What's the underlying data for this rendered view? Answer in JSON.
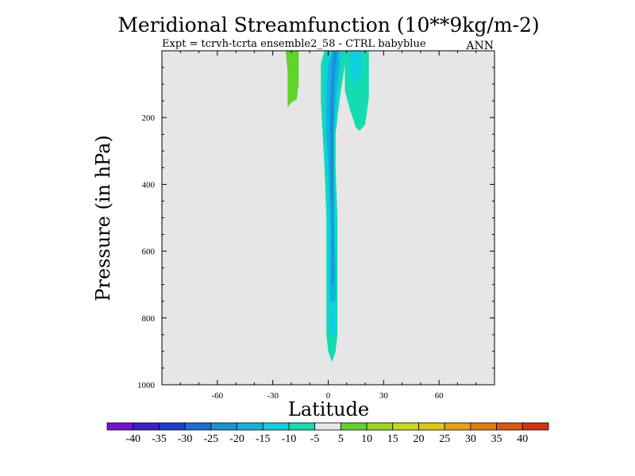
{
  "chart_data": {
    "type": "contour",
    "title": "Meridional Streamfunction (10**9kg/m-2)",
    "subtitle": "Expt = tcrvh-tcrta  ensemble2_58 - CTRL babyblue",
    "season": "ANN",
    "xlabel": "Latitude",
    "ylabel": "Pressure (in hPa)",
    "xlim": [
      -90,
      90
    ],
    "ylim": [
      1000,
      0
    ],
    "x_major_ticks": [
      -60,
      -30,
      0,
      30,
      60
    ],
    "x_tick_labels": [
      "-60",
      "-30",
      "0",
      "30",
      "60"
    ],
    "y_major_ticks": [
      200,
      400,
      600,
      800,
      1000
    ],
    "y_tick_labels": [
      "200",
      "400",
      "600",
      "800",
      "1000"
    ],
    "background_color": "#e6e6e6",
    "colorbar": {
      "levels": [
        -40,
        -35,
        -30,
        -25,
        -20,
        -15,
        -10,
        -5,
        5,
        10,
        15,
        20,
        25,
        30,
        35,
        40
      ],
      "labels": [
        "-40",
        "-35",
        "-30",
        "-25",
        "-20",
        "-15",
        "-10",
        "-5",
        "5",
        "10",
        "15",
        "20",
        "25",
        "30",
        "35",
        "40"
      ],
      "colors": [
        "#7a10d8",
        "#3a1fd0",
        "#1b3fd8",
        "#1a6ed8",
        "#1592d8",
        "#13b2de",
        "#10cfe0",
        "#12dcb0",
        "#e6e6e6",
        "#5fd42a",
        "#9ad81a",
        "#c8d81a",
        "#e2c412",
        "#e3a20e",
        "#e27c0c",
        "#e0560c",
        "#d8300c"
      ]
    },
    "regions": [
      {
        "name": "central-cell-outer",
        "level_band": "-10 to -5",
        "color": "#12dcb0",
        "polygon": [
          [
            -2,
            0
          ],
          [
            -4,
            40
          ],
          [
            -4,
            150
          ],
          [
            -3,
            250
          ],
          [
            -2,
            350
          ],
          [
            -1,
            500
          ],
          [
            -1,
            650
          ],
          [
            -1,
            750
          ],
          [
            -1,
            850
          ],
          [
            0,
            900
          ],
          [
            2,
            932
          ],
          [
            4,
            900
          ],
          [
            5,
            850
          ],
          [
            5,
            750
          ],
          [
            5,
            650
          ],
          [
            5,
            500
          ],
          [
            4,
            350
          ],
          [
            4,
            250
          ],
          [
            6,
            150
          ],
          [
            9,
            40
          ],
          [
            10,
            0
          ]
        ]
      },
      {
        "name": "central-cell-mid",
        "level_band": "-15 to -10",
        "color": "#10cfe0",
        "polygon": [
          [
            1,
            0
          ],
          [
            -2,
            40
          ],
          [
            -2,
            150
          ],
          [
            -2,
            250
          ],
          [
            -1,
            350
          ],
          [
            0,
            500
          ],
          [
            0,
            650
          ],
          [
            0,
            750
          ],
          [
            1,
            850
          ],
          [
            4,
            850
          ],
          [
            4,
            750
          ],
          [
            4,
            650
          ],
          [
            4,
            500
          ],
          [
            3,
            350
          ],
          [
            3,
            250
          ],
          [
            5,
            150
          ],
          [
            7,
            40
          ],
          [
            8,
            0
          ]
        ]
      },
      {
        "name": "central-cell-inner",
        "level_band": "-20 to -15",
        "color": "#13b2de",
        "polygon": [
          [
            2,
            0
          ],
          [
            0,
            40
          ],
          [
            -1,
            150
          ],
          [
            -1,
            250
          ],
          [
            0,
            350
          ],
          [
            1,
            500
          ],
          [
            1,
            650
          ],
          [
            1,
            750
          ],
          [
            4,
            750
          ],
          [
            4,
            650
          ],
          [
            3,
            500
          ],
          [
            3,
            350
          ],
          [
            3,
            250
          ],
          [
            4,
            150
          ],
          [
            6,
            40
          ],
          [
            6,
            0
          ]
        ]
      },
      {
        "name": "central-cell-core",
        "level_band": "-25 to -20",
        "color": "#1592d8",
        "polygon": [
          [
            3,
            0
          ],
          [
            2,
            40
          ],
          [
            1,
            150
          ],
          [
            1,
            250
          ],
          [
            1,
            350
          ],
          [
            2,
            500
          ],
          [
            2,
            650
          ],
          [
            2,
            700
          ],
          [
            3,
            700
          ],
          [
            3,
            650
          ],
          [
            3,
            500
          ],
          [
            3,
            350
          ],
          [
            3,
            250
          ],
          [
            3,
            150
          ],
          [
            4,
            40
          ],
          [
            5,
            0
          ]
        ]
      },
      {
        "name": "nh-upper-lobe-outer",
        "level_band": "-10 to -5",
        "color": "#12dcb0",
        "polygon": [
          [
            10,
            0
          ],
          [
            9,
            40
          ],
          [
            9,
            120
          ],
          [
            12,
            180
          ],
          [
            15,
            230
          ],
          [
            17,
            240
          ],
          [
            20,
            220
          ],
          [
            22,
            140
          ],
          [
            22,
            40
          ],
          [
            22,
            0
          ]
        ]
      },
      {
        "name": "nh-upper-lobe-inner",
        "level_band": "-15 to -10",
        "color": "#10cfe0",
        "polygon": [
          [
            12,
            0
          ],
          [
            12,
            40
          ],
          [
            12,
            80
          ],
          [
            14,
            100
          ],
          [
            16,
            90
          ],
          [
            18,
            60
          ],
          [
            18,
            30
          ],
          [
            18,
            0
          ]
        ]
      },
      {
        "name": "sh-positive-lobe",
        "level_band": "5 to 10",
        "color": "#5fd42a",
        "polygon": [
          [
            -23,
            0
          ],
          [
            -22,
            60
          ],
          [
            -22,
            120
          ],
          [
            -22,
            170
          ],
          [
            -20,
            155
          ],
          [
            -17,
            145
          ],
          [
            -16,
            100
          ],
          [
            -16,
            40
          ],
          [
            -16,
            0
          ]
        ]
      }
    ]
  }
}
